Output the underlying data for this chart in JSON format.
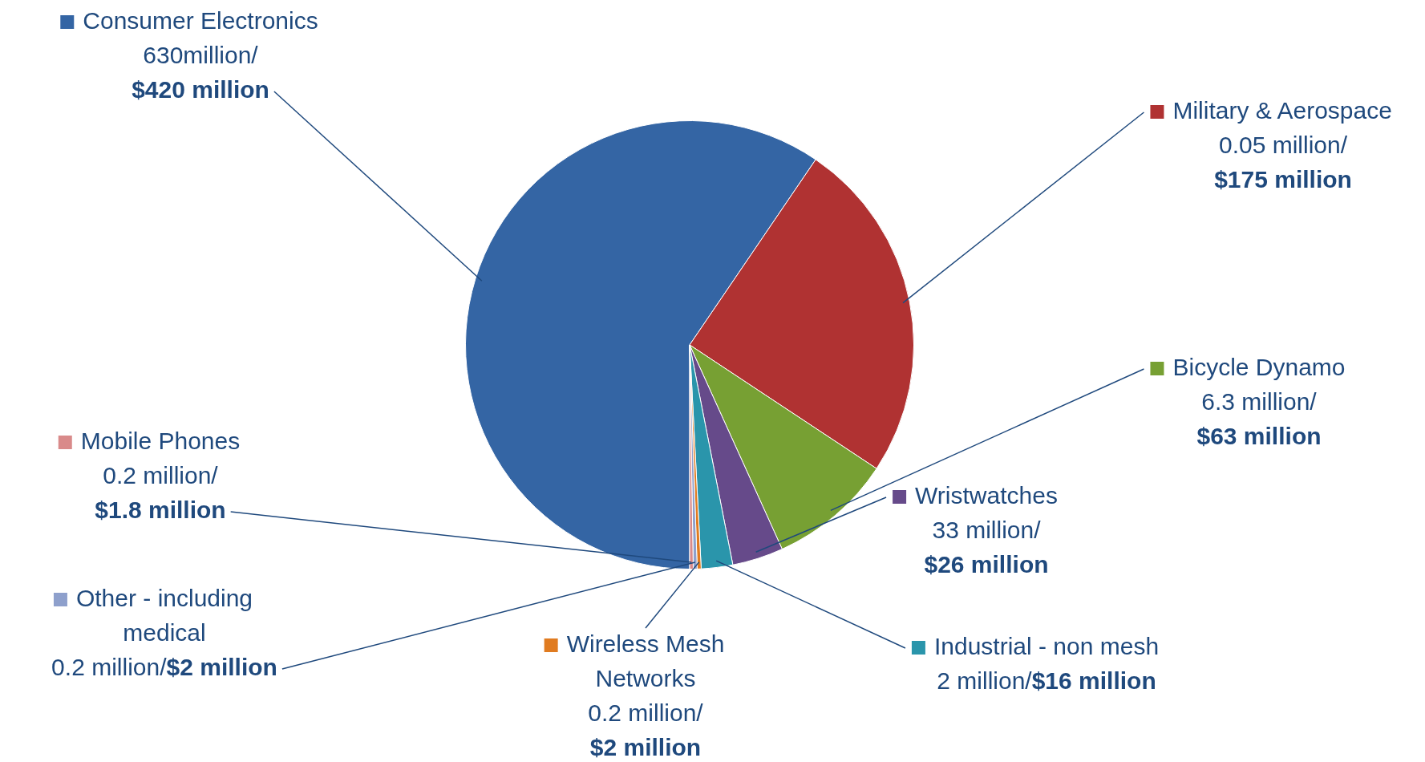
{
  "chart_data": {
    "type": "pie",
    "categories": [
      "Consumer Electronics\n630million/",
      "Military & Aerospace\n0.05 million/",
      "Bicycle Dynamo\n6.3 million/",
      "Wristwatches\n33 million/",
      "Industrial - non mesh\n2 million/",
      "Wireless Mesh\nNetworks\n0.2 million/",
      "Other - including\nmedical\n0.2 million/",
      "Mobile Phones\n0.2 million/"
    ],
    "values": [
      420,
      175,
      63,
      26,
      16,
      2,
      2,
      1.8
    ],
    "colors": [
      "#3465a4",
      "#b03232",
      "#77a033",
      "#664a8a",
      "#2a95ab",
      "#e07b20",
      "#8ea0cc",
      "#d98a8a"
    ],
    "value_labels": [
      "$420 million",
      "$175 million",
      "$63 million",
      "$26 million",
      "$16 million",
      "$2 million",
      "$2 million",
      "$1.8 million"
    ],
    "legend": "right"
  }
}
